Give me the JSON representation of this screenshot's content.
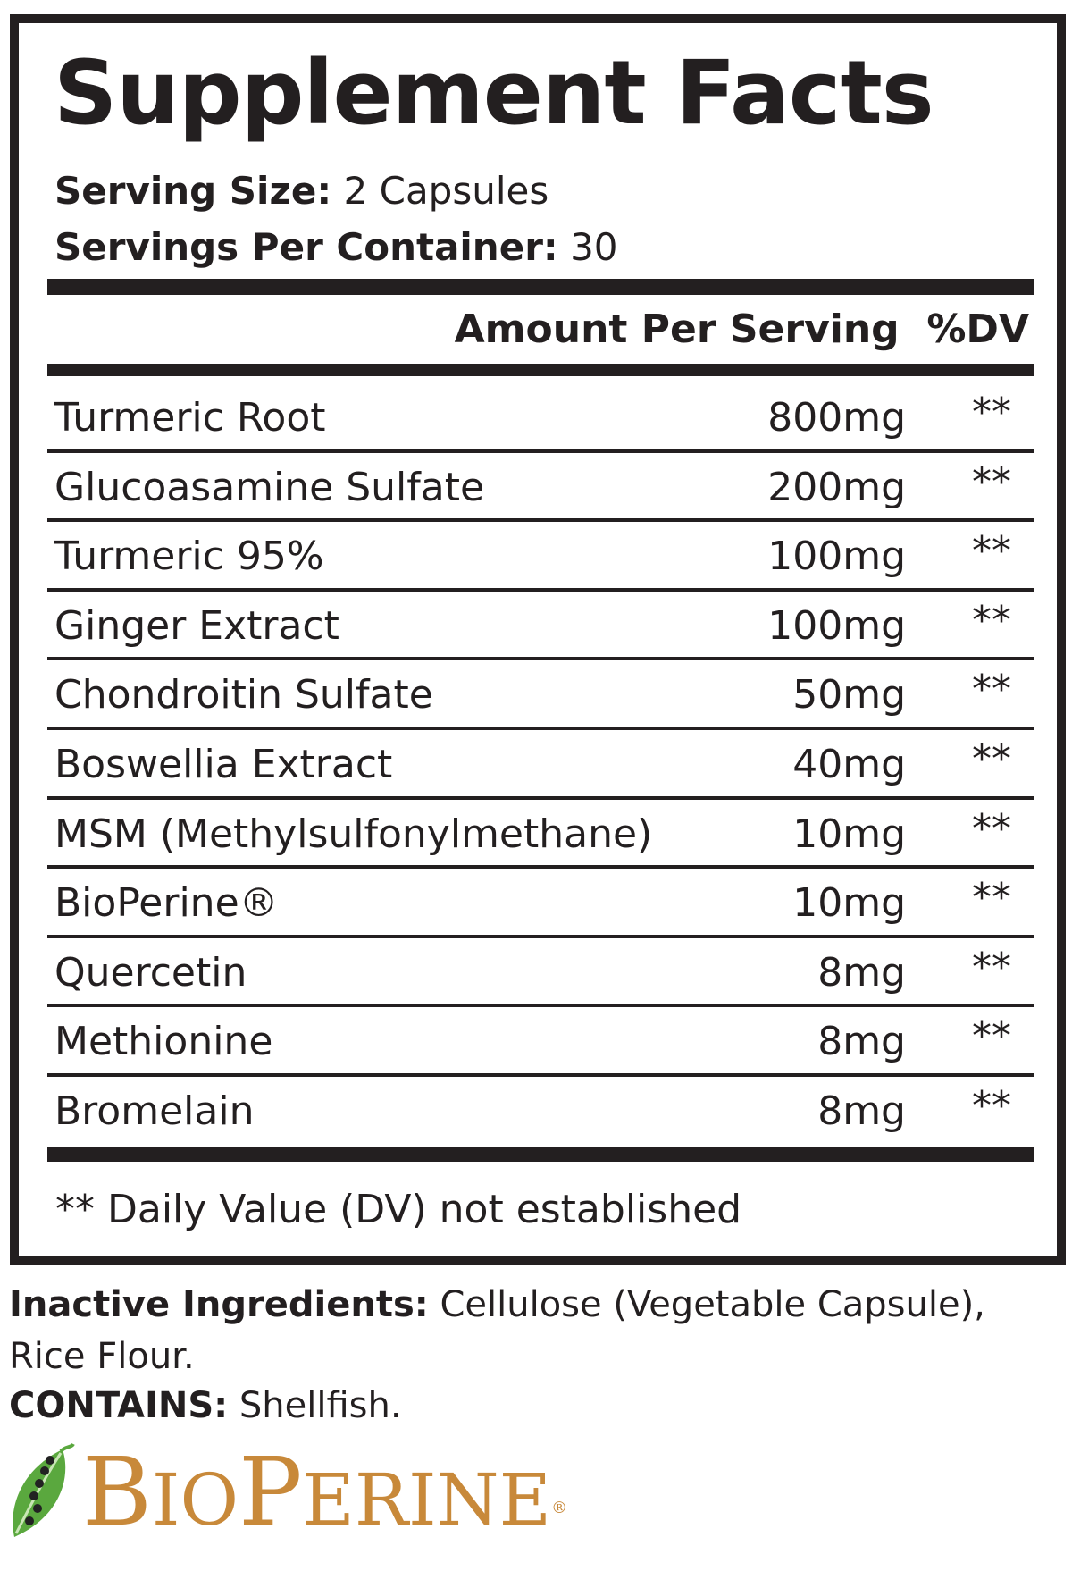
{
  "title": "Supplement Facts",
  "serving_size": {
    "label": "Serving Size:",
    "value": "2 Capsules"
  },
  "servings_per_container": {
    "label": "Servings Per Container:",
    "value": "30"
  },
  "table_header": {
    "amount": "Amount Per Serving",
    "dv": "%DV"
  },
  "ingredients": [
    {
      "name": "Turmeric Root",
      "amount": "800mg",
      "dv": "**"
    },
    {
      "name": "Glucoasamine Sulfate",
      "amount": "200mg",
      "dv": "**"
    },
    {
      "name": "Turmeric 95%",
      "amount": "100mg",
      "dv": "**"
    },
    {
      "name": "Ginger Extract",
      "amount": "100mg",
      "dv": "**"
    },
    {
      "name": "Chondroitin Sulfate",
      "amount": "50mg",
      "dv": "**"
    },
    {
      "name": "Boswellia Extract",
      "amount": "40mg",
      "dv": "**"
    },
    {
      "name": "MSM (Methylsulfonylmethane)",
      "amount": "10mg",
      "dv": "**"
    },
    {
      "name": "BioPerine®",
      "amount": "10mg",
      "dv": "**"
    },
    {
      "name": "Quercetin",
      "amount": "8mg",
      "dv": "**"
    },
    {
      "name": "Methionine",
      "amount": "8mg",
      "dv": "**"
    },
    {
      "name": "Bromelain",
      "amount": "8mg",
      "dv": "**"
    }
  ],
  "footnote": "** Daily Value (DV) not established",
  "inactive": {
    "label": "Inactive Ingredients:",
    "value": "Cellulose (Vegetable Capsule),",
    "value2": "Rice Flour."
  },
  "contains": {
    "label": "CONTAINS:",
    "value": "Shellfish."
  },
  "logo": {
    "text": "BioPerine®",
    "color": "#c8893a",
    "leaf_color": "#4f9a3a",
    "icon": "pepper-leaf-icon"
  }
}
